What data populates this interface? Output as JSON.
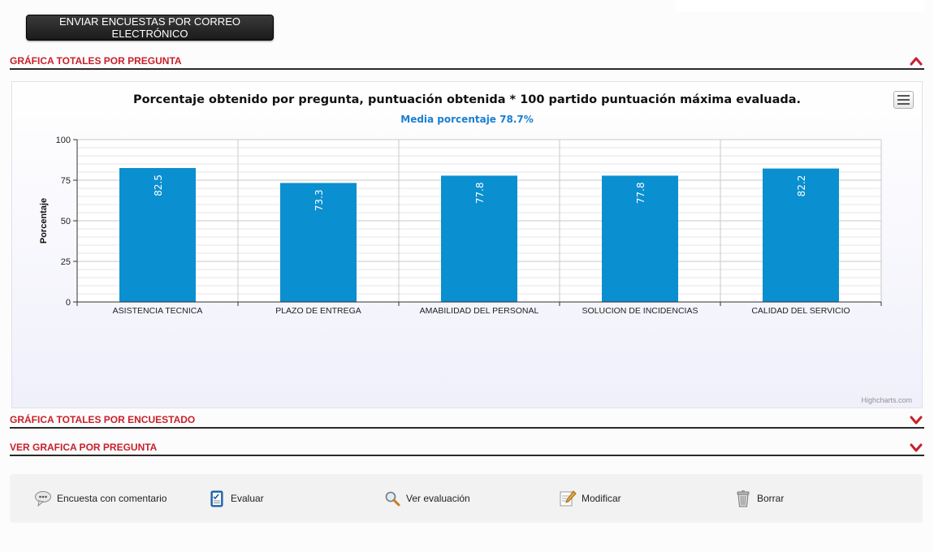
{
  "toolbar": {
    "send_label": "ENVIAR ENCUESTAS POR CORREO ELECTRÓNICO"
  },
  "sections": [
    {
      "label": "GRÁFICA TOTALES POR PREGUNTA",
      "expanded": true
    },
    {
      "label": "GRÁFICA TOTALES POR ENCUESTADO",
      "expanded": false
    },
    {
      "label": "VER GRAFICA POR PREGUNTA",
      "expanded": false
    }
  ],
  "chart": {
    "title": "Porcentaje obtenido por pregunta, puntuación obtenida * 100 partido puntuación máxima evaluada.",
    "subtitle": "Media porcentaje 78.7%",
    "credits": "Highcharts.com",
    "menu_icon": "hamburger-icon"
  },
  "chart_data": {
    "type": "bar",
    "title": "Porcentaje obtenido por pregunta, puntuación obtenida * 100 partido puntuación máxima evaluada.",
    "subtitle": "Media porcentaje 78.7%",
    "categories": [
      "ASISTENCIA TECNICA",
      "PLAZO DE ENTREGA",
      "AMABILIDAD DEL PERSONAL",
      "SOLUCION DE INCIDENCIAS",
      "CALIDAD DEL SERVICIO"
    ],
    "values": [
      82.5,
      73.3,
      77.8,
      77.8,
      82.2
    ],
    "xlabel": "",
    "ylabel": "Porcentaje",
    "ylim": [
      0,
      100
    ],
    "yticks": [
      0,
      25,
      50,
      75,
      100
    ],
    "grid": true,
    "bar_color": "#0a8fd0"
  },
  "actions": [
    {
      "label": "Encuesta con comentario",
      "icon": "speech-bubble-icon"
    },
    {
      "label": "Evaluar",
      "icon": "checklist-icon"
    },
    {
      "label": "Ver evaluación",
      "icon": "magnifier-icon"
    },
    {
      "label": "Modificar",
      "icon": "edit-document-icon"
    },
    {
      "label": "Borrar",
      "icon": "trash-icon"
    }
  ],
  "colors": {
    "accent_red": "#c8202a",
    "bar": "#0a8fd0",
    "subtitle_blue": "#1a7fd1",
    "button_dark": "#222222"
  }
}
